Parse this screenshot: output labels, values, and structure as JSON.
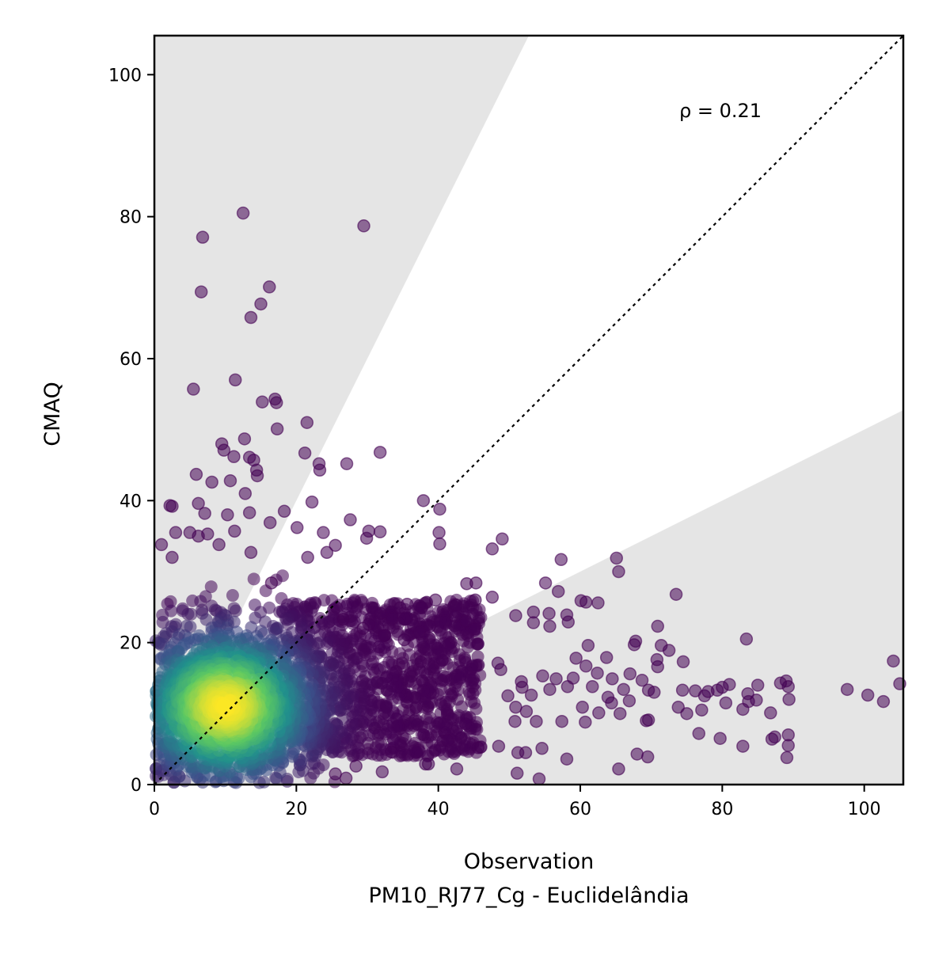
{
  "chart_data": {
    "type": "scatter",
    "xlabel": "Observation",
    "xlabel_sub": "PM10_RJ77_Cg - Euclidelândia",
    "ylabel": "CMAQ",
    "xlim": [
      0,
      105.5
    ],
    "ylim": [
      0,
      105.5
    ],
    "xticks": [
      "0",
      "20",
      "40",
      "60",
      "80",
      "100"
    ],
    "yticks": [
      "0",
      "20",
      "40",
      "60",
      "80",
      "100"
    ],
    "annotation": "ρ = 0.21",
    "reference_line": {
      "style": "dotted",
      "slope": 1
    },
    "shaded_band": {
      "upper_slope": 2,
      "lower_slope": 0.5,
      "color": "#e5e5e5",
      "shading": "outside"
    },
    "colormap": "viridis",
    "density_cluster": {
      "center": [
        10,
        11
      ],
      "spread": [
        7,
        6
      ]
    },
    "outlier_points": [
      [
        12.5,
        80.5
      ],
      [
        29.5,
        78.7
      ],
      [
        6.8,
        77.1
      ],
      [
        16.2,
        70.1
      ],
      [
        6.6,
        69.4
      ],
      [
        15.0,
        67.7
      ],
      [
        13.6,
        65.8
      ],
      [
        5.5,
        55.7
      ],
      [
        11.4,
        57.0
      ],
      [
        15.2,
        53.9
      ],
      [
        17.0,
        54.3
      ],
      [
        17.2,
        53.8
      ],
      [
        17.3,
        50.1
      ],
      [
        21.5,
        51.0
      ],
      [
        9.5,
        48.0
      ],
      [
        12.7,
        48.7
      ],
      [
        9.8,
        47.1
      ],
      [
        11.2,
        46.2
      ],
      [
        13.4,
        46.1
      ],
      [
        21.2,
        46.7
      ],
      [
        23.2,
        45.2
      ],
      [
        23.3,
        44.3
      ],
      [
        27.1,
        45.2
      ],
      [
        31.8,
        46.8
      ],
      [
        14.0,
        45.7
      ],
      [
        14.4,
        44.3
      ],
      [
        14.5,
        43.5
      ],
      [
        8.1,
        42.6
      ],
      [
        10.7,
        42.8
      ],
      [
        12.8,
        41.0
      ],
      [
        5.9,
        43.7
      ],
      [
        2.2,
        39.3
      ],
      [
        2.5,
        39.2
      ],
      [
        6.2,
        39.6
      ],
      [
        7.1,
        38.2
      ],
      [
        10.3,
        38.0
      ],
      [
        13.4,
        38.3
      ],
      [
        22.2,
        39.8
      ],
      [
        37.9,
        40.0
      ],
      [
        40.2,
        38.8
      ],
      [
        40.1,
        35.5
      ],
      [
        40.2,
        33.9
      ],
      [
        27.6,
        37.3
      ],
      [
        30.2,
        35.7
      ],
      [
        31.8,
        35.6
      ],
      [
        29.9,
        34.7
      ],
      [
        1.0,
        33.8
      ],
      [
        3.0,
        35.5
      ],
      [
        5.0,
        35.5
      ],
      [
        6.2,
        35.0
      ],
      [
        7.5,
        35.3
      ],
      [
        9.1,
        33.8
      ],
      [
        11.3,
        35.7
      ],
      [
        16.3,
        36.9
      ],
      [
        18.3,
        38.5
      ],
      [
        20.1,
        36.2
      ],
      [
        23.8,
        35.5
      ],
      [
        24.3,
        32.7
      ],
      [
        25.5,
        33.7
      ],
      [
        21.6,
        32.0
      ],
      [
        2.5,
        32.0
      ],
      [
        13.6,
        32.7
      ],
      [
        16.5,
        28.4
      ],
      [
        49.0,
        34.6
      ],
      [
        47.6,
        33.2
      ],
      [
        45.3,
        28.4
      ],
      [
        47.6,
        26.4
      ],
      [
        45.2,
        26.0
      ],
      [
        44.0,
        28.3
      ],
      [
        42.5,
        25.3
      ],
      [
        42.4,
        23.7
      ],
      [
        43.9,
        23.0
      ],
      [
        45.1,
        21.9
      ],
      [
        57.3,
        31.7
      ],
      [
        65.1,
        31.9
      ],
      [
        65.4,
        30.0
      ],
      [
        60.1,
        25.9
      ],
      [
        58.1,
        23.9
      ],
      [
        58.3,
        22.9
      ],
      [
        60.8,
        25.7
      ],
      [
        62.5,
        25.6
      ],
      [
        56.9,
        27.2
      ],
      [
        55.1,
        28.4
      ],
      [
        53.4,
        24.3
      ],
      [
        55.6,
        24.1
      ],
      [
        53.4,
        22.8
      ],
      [
        55.7,
        22.3
      ],
      [
        50.9,
        23.8
      ],
      [
        73.5,
        26.8
      ],
      [
        61.1,
        19.6
      ],
      [
        59.4,
        17.8
      ],
      [
        60.8,
        16.7
      ],
      [
        63.7,
        17.9
      ],
      [
        67.8,
        20.2
      ],
      [
        67.6,
        19.7
      ],
      [
        70.9,
        22.3
      ],
      [
        71.4,
        19.6
      ],
      [
        70.8,
        17.6
      ],
      [
        70.9,
        16.6
      ],
      [
        72.5,
        18.9
      ],
      [
        74.5,
        17.3
      ],
      [
        83.4,
        20.5
      ],
      [
        39.6,
        26.0
      ],
      [
        38.8,
        22.3
      ],
      [
        34.6,
        24.9
      ],
      [
        31.9,
        24.1
      ],
      [
        35.6,
        25.4
      ],
      [
        36.5,
        22.4
      ],
      [
        37.3,
        21.5
      ],
      [
        35.2,
        20.4
      ],
      [
        33.5,
        23.4
      ],
      [
        30.2,
        22.6
      ],
      [
        29.4,
        22.0
      ],
      [
        32.4,
        21.0
      ],
      [
        26.6,
        23.3
      ],
      [
        48.4,
        17.1
      ],
      [
        48.8,
        16.2
      ],
      [
        51.7,
        14.5
      ],
      [
        54.7,
        15.3
      ],
      [
        56.6,
        14.9
      ],
      [
        59.0,
        15.0
      ],
      [
        62.4,
        15.7
      ],
      [
        64.5,
        14.9
      ],
      [
        67.0,
        15.6
      ],
      [
        68.7,
        14.7
      ],
      [
        69.6,
        13.3
      ],
      [
        66.1,
        13.4
      ],
      [
        61.7,
        13.8
      ],
      [
        58.2,
        13.8
      ],
      [
        55.7,
        13.4
      ],
      [
        51.8,
        13.7
      ],
      [
        49.8,
        12.5
      ],
      [
        53.1,
        12.6
      ],
      [
        50.9,
        10.9
      ],
      [
        52.4,
        10.3
      ],
      [
        50.8,
        8.9
      ],
      [
        53.8,
        8.9
      ],
      [
        57.4,
        8.9
      ],
      [
        60.7,
        8.8
      ],
      [
        62.6,
        10.1
      ],
      [
        63.9,
        12.3
      ],
      [
        64.4,
        11.5
      ],
      [
        66.9,
        11.8
      ],
      [
        65.6,
        10.0
      ],
      [
        60.3,
        10.9
      ],
      [
        69.6,
        9.1
      ],
      [
        69.3,
        9.0
      ],
      [
        70.4,
        13.0
      ],
      [
        73.8,
        10.9
      ],
      [
        75.0,
        10.0
      ],
      [
        74.4,
        13.3
      ],
      [
        76.2,
        13.2
      ],
      [
        77.5,
        12.5
      ],
      [
        77.1,
        10.5
      ],
      [
        78.0,
        13.1
      ],
      [
        79.3,
        13.3
      ],
      [
        80.0,
        13.7
      ],
      [
        80.5,
        11.5
      ],
      [
        81.0,
        14.1
      ],
      [
        82.9,
        10.6
      ],
      [
        83.6,
        12.8
      ],
      [
        83.7,
        11.7
      ],
      [
        85.0,
        14.0
      ],
      [
        84.8,
        11.9
      ],
      [
        86.8,
        10.1
      ],
      [
        89.0,
        14.6
      ],
      [
        89.3,
        13.8
      ],
      [
        88.2,
        14.3
      ],
      [
        89.4,
        12.0
      ],
      [
        97.6,
        13.4
      ],
      [
        100.5,
        12.6
      ],
      [
        102.7,
        11.7
      ],
      [
        104.1,
        17.4
      ],
      [
        105.0,
        14.2
      ],
      [
        76.7,
        7.2
      ],
      [
        79.7,
        6.5
      ],
      [
        82.9,
        5.4
      ],
      [
        87.4,
        6.7
      ],
      [
        87.0,
        6.4
      ],
      [
        89.3,
        7.0
      ],
      [
        89.3,
        5.5
      ],
      [
        89.1,
        3.8
      ],
      [
        68.0,
        4.3
      ],
      [
        69.5,
        3.9
      ],
      [
        65.4,
        2.2
      ],
      [
        58.1,
        3.6
      ],
      [
        54.6,
        5.1
      ],
      [
        51.2,
        4.5
      ],
      [
        52.3,
        4.5
      ],
      [
        51.1,
        1.6
      ],
      [
        54.2,
        0.8
      ],
      [
        48.5,
        5.4
      ],
      [
        45.6,
        5.2
      ],
      [
        46.0,
        5.3
      ],
      [
        42.6,
        2.2
      ],
      [
        41.3,
        6.2
      ],
      [
        38.6,
        2.9
      ],
      [
        38.2,
        2.9
      ],
      [
        33.4,
        4.6
      ],
      [
        32.1,
        1.8
      ],
      [
        28.4,
        2.6
      ],
      [
        27.0,
        0.9
      ],
      [
        25.5,
        1.5
      ]
    ]
  }
}
